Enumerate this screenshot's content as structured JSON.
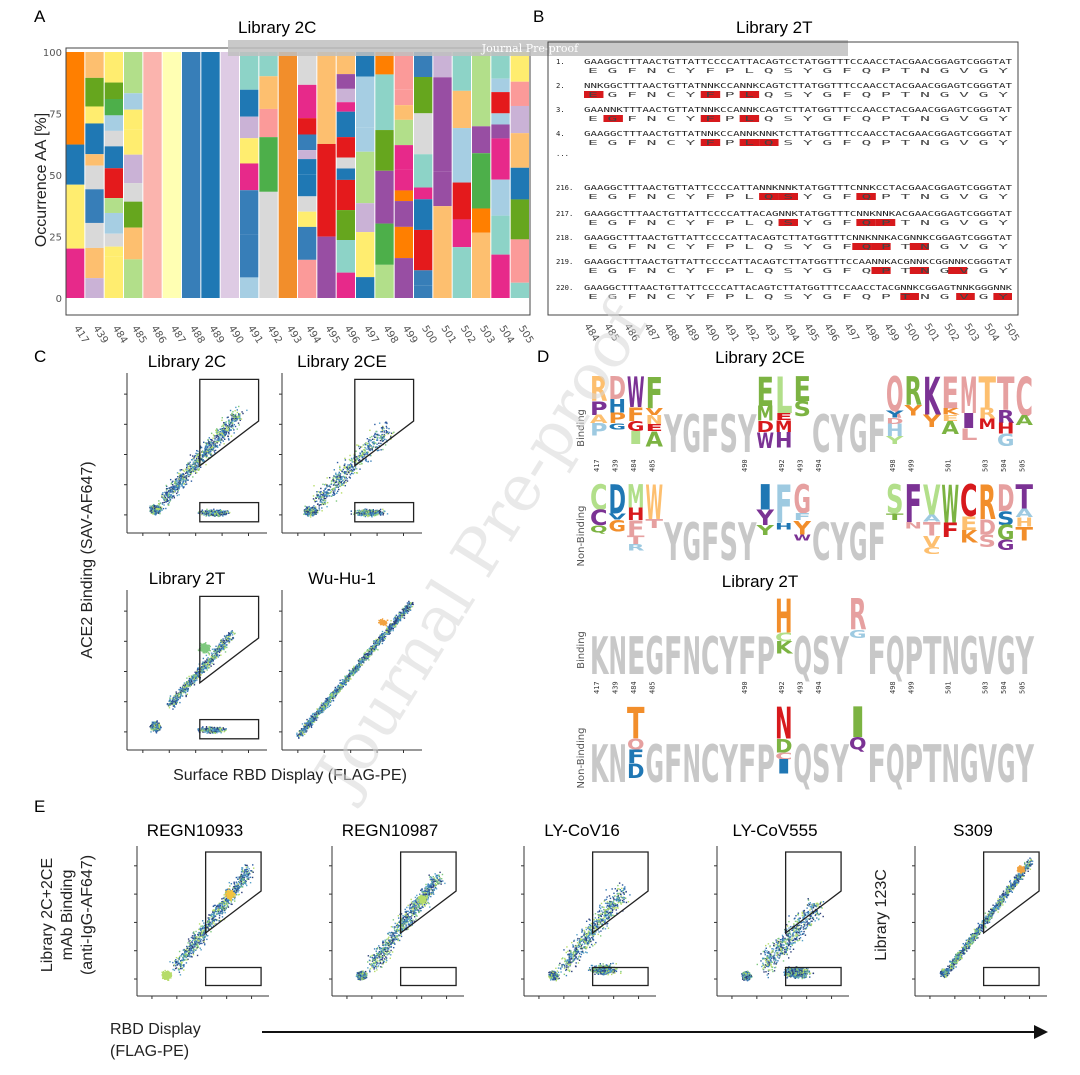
{
  "header": {
    "banner": "Journal Pre-proof",
    "watermark": "Journal Pre-proof"
  },
  "panelA": {
    "letter": "A",
    "title": "Library 2C",
    "ylabel": "Occurrence AA [%]",
    "yticks": [
      "100",
      "75",
      "50",
      "25",
      "0"
    ],
    "positions": [
      "417",
      "439",
      "484",
      "485",
      "486",
      "487",
      "488",
      "489",
      "490",
      "491",
      "492",
      "493",
      "494",
      "495",
      "496",
      "497",
      "498",
      "499",
      "500",
      "501",
      "502",
      "503",
      "504",
      "505"
    ]
  },
  "panelB": {
    "letter": "B",
    "title": "Library 2T",
    "ellipsis": "...",
    "rows": [
      {
        "n": "1.",
        "seq": "GAAGGCTTTAACTGTTATTCCCCATTACAGTCCTATGGTTTCCAACCTACGAACGGAGTCGGGTAT",
        "aa": "E G F N C Y F P L Q S Y G F Q P T N G V G Y"
      },
      {
        "n": "2.",
        "seq": "NNKGGCTTTAACTGTTATNNKCCANNKCAGTCTTATGGTTTCCAACCTACGAACGGAGTCGGGTAT",
        "aa": "E G F N C Y F P L Q S Y G F Q P T N G V G Y"
      },
      {
        "n": "3.",
        "seq": "GAANNKTTTAACTGTTATNNKCCANNKCAGTCTTATGGTTTCCAACCTACGAACGGAGTCGGGTAT",
        "aa": "E G F N C Y F P L Q S Y G F Q P T N G V G Y"
      },
      {
        "n": "4.",
        "seq": "GAAGGCTTTAACTGTTATNNKCCANNKNNKTCTTATGGTTTCCAACCTACGAACGGAGTCGGGTAT",
        "aa": "E G F N C Y F P L Q S Y G F Q P T N G V G Y"
      },
      {
        "n": "216.",
        "seq": "GAAGGCTTTAACTGTTATTCCCCATTANNKNNKTATGGTTTCNNKCCTACGAACGGAGTCGGGTAT",
        "aa": "E G F N C Y F P L Q S Y G F Q P T N G V G Y"
      },
      {
        "n": "217.",
        "seq": "GAAGGCTTTAACTGTTATTCCCCATTACAGNNKTATGGTTTCNNKNNKACGAACGGAGTCGGGTAT",
        "aa": "E G F N C Y F P L Q S Y G F Q P T N G V G Y"
      },
      {
        "n": "218.",
        "seq": "GAAGGCTTTAACTGTTATTCCCCATTACAGTCTTATGGTTTCNNKNNKACGNNKCGGAGTCGGGTAT",
        "aa": "E G F N C Y F P L Q S Y G F Q P T N G V G Y"
      },
      {
        "n": "219.",
        "seq": "GAAGGCTTTAACTGTTATTCCCCATTACAGTCTTATGGTTTCCAANNKACGNNKCGGNNKCGGGTAT",
        "aa": "E G F N C Y F P L Q S Y G F Q P T N G V G Y"
      },
      {
        "n": "220.",
        "seq": "GAAGGCTTTAACTGTTATTCCCCATTACAGTCTTATGGTTTCCAACCTACGNNKCGGAGTNNKGGGNNK",
        "aa": "E G F N C Y F P L Q S Y G F Q P T N G V G Y"
      }
    ],
    "positions": [
      "484",
      "485",
      "486",
      "487",
      "488",
      "489",
      "490",
      "491",
      "492",
      "493",
      "494",
      "495",
      "496",
      "497",
      "498",
      "499",
      "500",
      "501",
      "502",
      "503",
      "504",
      "505"
    ]
  },
  "panelC": {
    "letter": "C",
    "plots": [
      "Library 2C",
      "Library 2CE",
      "Library 2T",
      "Wu-Hu-1"
    ],
    "ylabel": "ACE2 Binding (SAV-AF647)",
    "xlabel": "Surface RBD Display (FLAG-PE)"
  },
  "panelD": {
    "letter": "D",
    "title1": "Library 2CE",
    "title2": "Library 2T",
    "row_binding": "Binding",
    "row_nonbinding": "Non-Binding",
    "positions": [
      "417",
      "439",
      "484",
      "485",
      "490",
      "492",
      "493",
      "494",
      "498",
      "499",
      "501",
      "503",
      "504",
      "505"
    ]
  },
  "panelE": {
    "letter": "E",
    "plots": [
      "REGN10933",
      "REGN10987",
      "LY-CoV16",
      "LY-CoV555",
      "S309"
    ],
    "ylabel_1": "Library 2C+2CE",
    "ylabel_2": "mAb Binding",
    "ylabel_3": "(anti-IgG-AF647)",
    "ylabel_right": "Library 123C",
    "xlabel_1": "RBD Display",
    "xlabel_2": "(FLAG-PE)"
  },
  "colors": {
    "red": "#d7191c",
    "blue": "#1f77b4",
    "green": "#7cb342",
    "orange": "#f28e2b",
    "purple": "#7b3294",
    "gray": "#c8c8c8"
  }
}
